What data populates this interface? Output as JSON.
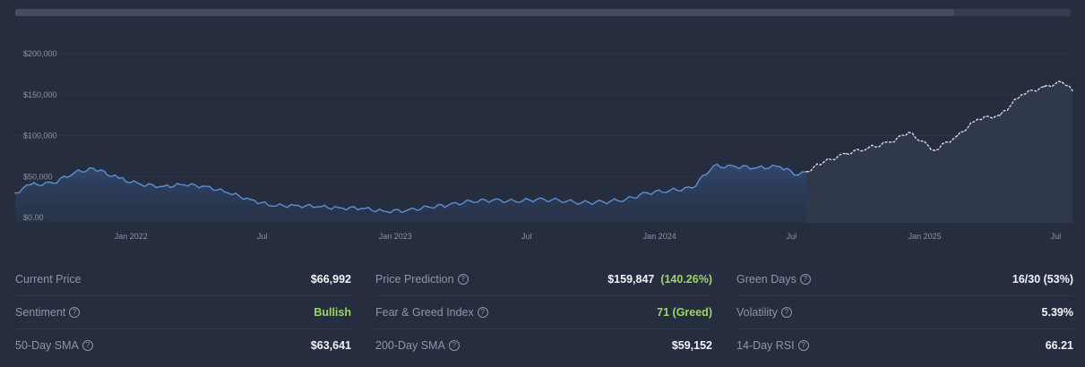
{
  "scrollbar": {
    "fill_fraction": 0.89
  },
  "chart_data": {
    "type": "area",
    "title": "",
    "xlabel": "",
    "ylabel": "",
    "ylim": [
      0,
      200000
    ],
    "yticks": [
      "$200,000",
      "$150,000",
      "$100,000",
      "$50,000",
      "$0.00"
    ],
    "ytick_values": [
      200000,
      150000,
      100000,
      50000,
      0
    ],
    "xticks": [
      "Jan 2022",
      "Jul",
      "Jan 2023",
      "Jul",
      "Jan 2024",
      "Jul",
      "Jan 2025",
      "Jul"
    ],
    "xtick_dates": [
      "2022-01-01",
      "2022-07-01",
      "2023-01-01",
      "2023-07-01",
      "2024-01-01",
      "2024-07-01",
      "2025-01-01",
      "2025-07-01"
    ],
    "xlim": [
      "2021-07-25",
      "2025-07-24"
    ],
    "grid": true,
    "series": [
      {
        "kind": "historical",
        "color": "#5b8fd6",
        "x": [
          "2021-07-25",
          "2021-08-15",
          "2021-09-15",
          "2021-10-15",
          "2021-11-10",
          "2021-12-15",
          "2022-01-15",
          "2022-02-15",
          "2022-03-15",
          "2022-04-15",
          "2022-05-15",
          "2022-06-15",
          "2022-07-15",
          "2022-08-15",
          "2022-09-15",
          "2022-10-15",
          "2022-11-15",
          "2022-12-15",
          "2023-01-15",
          "2023-02-15",
          "2023-03-15",
          "2023-04-15",
          "2023-05-15",
          "2023-06-15",
          "2023-07-15",
          "2023-08-15",
          "2023-09-15",
          "2023-10-15",
          "2023-11-15",
          "2023-12-15",
          "2024-01-15",
          "2024-02-15",
          "2024-03-15",
          "2024-04-15",
          "2024-05-15",
          "2024-06-15",
          "2024-07-10",
          "2024-07-22"
        ],
        "values": [
          30000,
          40000,
          42000,
          55000,
          60000,
          48000,
          40000,
          38000,
          40000,
          38000,
          30000,
          22000,
          14000,
          15000,
          13000,
          12000,
          11000,
          8000,
          8000,
          13000,
          15000,
          20000,
          21000,
          20000,
          22000,
          21000,
          18000,
          19000,
          22000,
          30000,
          33000,
          36000,
          63000,
          62000,
          61000,
          62000,
          52000,
          56000
        ]
      },
      {
        "kind": "prediction",
        "color": "#d5d9e2",
        "x": [
          "2024-07-22",
          "2024-08-15",
          "2024-09-15",
          "2024-10-15",
          "2024-11-15",
          "2024-12-10",
          "2025-01-15",
          "2025-02-15",
          "2025-03-15",
          "2025-04-15",
          "2025-05-15",
          "2025-06-15",
          "2025-07-10",
          "2025-07-24"
        ],
        "values": [
          56000,
          68000,
          78000,
          85000,
          92000,
          104000,
          82000,
          100000,
          120000,
          125000,
          150000,
          160000,
          165000,
          155000
        ]
      }
    ]
  },
  "stats": {
    "col1": [
      {
        "label": "Current Price",
        "value": "$66,992",
        "help": false
      },
      {
        "label": "Sentiment",
        "value": "Bullish",
        "help": true,
        "tone": "green"
      },
      {
        "label": "50-Day SMA",
        "value": "$63,641",
        "help": true
      }
    ],
    "col2": [
      {
        "label": "Price Prediction",
        "value": "$159,847",
        "extra": "(140.26%)",
        "help": true
      },
      {
        "label": "Fear & Greed Index",
        "value": "71 (Greed)",
        "help": true,
        "tone": "green"
      },
      {
        "label": "200-Day SMA",
        "value": "$59,152",
        "help": true
      }
    ],
    "col3": [
      {
        "label": "Green Days",
        "value": "16/30 (53%)",
        "help": true
      },
      {
        "label": "Volatility",
        "value": "5.39%",
        "help": true
      },
      {
        "label": "14-Day RSI",
        "value": "66.21",
        "help": true
      }
    ],
    "help_glyph": "?",
    "colors": {
      "positive": "#9fd46a",
      "background": "#262d3e"
    }
  }
}
